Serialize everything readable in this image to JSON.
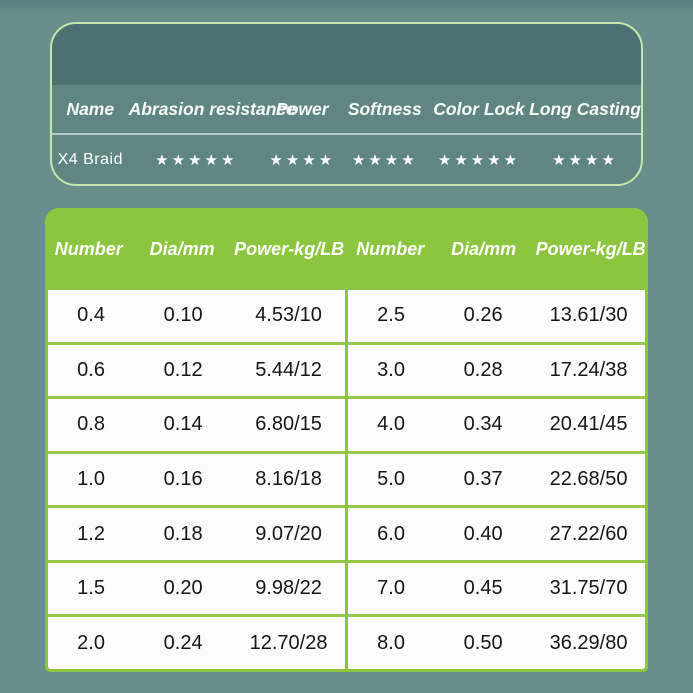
{
  "colors": {
    "page_bg": "#6a8e8c",
    "card_border": "#c5e7a9",
    "card_band": "#4d7170",
    "card_bg": "#618583",
    "table_accent": "#8cc63e",
    "table_body_bg": "#fcfdfb"
  },
  "rating_card": {
    "headers": [
      "Name",
      "Abrasion resistance",
      "Power",
      "Softness",
      "Color Lock",
      "Long Casting"
    ],
    "product": {
      "name": "X4 Braid",
      "abrasion_stars": "★★★★★",
      "power_stars": "★★★★",
      "softness_stars": "★★★★",
      "color_lock_stars": "★★★★★",
      "long_casting_stars": "★★★★"
    }
  },
  "size_table": {
    "header_labels": [
      "Number",
      "Dia/mm",
      "Power-kg/LB",
      "Number",
      "Dia/mm",
      "Power-kg/LB"
    ],
    "left_rows": [
      {
        "number": "0.4",
        "dia": "0.10",
        "power": "4.53/10"
      },
      {
        "number": "0.6",
        "dia": "0.12",
        "power": "5.44/12"
      },
      {
        "number": "0.8",
        "dia": "0.14",
        "power": "6.80/15"
      },
      {
        "number": "1.0",
        "dia": "0.16",
        "power": "8.16/18"
      },
      {
        "number": "1.2",
        "dia": "0.18",
        "power": "9.07/20"
      },
      {
        "number": "1.5",
        "dia": "0.20",
        "power": "9.98/22"
      },
      {
        "number": "2.0",
        "dia": "0.24",
        "power": "12.70/28"
      }
    ],
    "right_rows": [
      {
        "number": "2.5",
        "dia": "0.26",
        "power": "13.61/30"
      },
      {
        "number": "3.0",
        "dia": "0.28",
        "power": "17.24/38"
      },
      {
        "number": "4.0",
        "dia": "0.34",
        "power": "20.41/45"
      },
      {
        "number": "5.0",
        "dia": "0.37",
        "power": "22.68/50"
      },
      {
        "number": "6.0",
        "dia": "0.40",
        "power": "27.22/60"
      },
      {
        "number": "7.0",
        "dia": "0.45",
        "power": "31.75/70"
      },
      {
        "number": "8.0",
        "dia": "0.50",
        "power": "36.29/80"
      }
    ]
  }
}
